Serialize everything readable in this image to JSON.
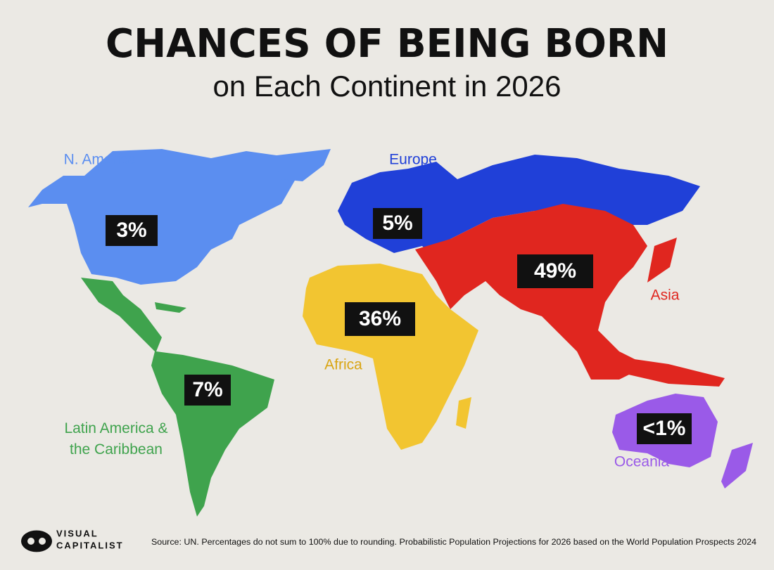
{
  "title": "CHANCES OF BEING BORN",
  "subtitle": "on Each Continent in 2026",
  "regions": [
    {
      "name": "N. America",
      "share": "3%",
      "color": "#5b8ef0"
    },
    {
      "name": "Latin America &\nthe Caribbean",
      "share": "7%",
      "color": "#3fa34d"
    },
    {
      "name": "Europe",
      "share": "5%",
      "color": "#2040d8"
    },
    {
      "name": "Africa",
      "share": "36%",
      "color": "#f2c531"
    },
    {
      "name": "Asia",
      "share": "49%",
      "color": "#e0261f"
    },
    {
      "name": "Oceania",
      "share": "<1%",
      "color": "#9a5ae8"
    }
  ],
  "logo": [
    "VISUAL",
    "CAPITALIST"
  ],
  "source": "Source: UN. Percentages do not sum to 100% due to rounding. Probabilistic Population Projections for 2026 based on the World Population Prospects 2024"
}
